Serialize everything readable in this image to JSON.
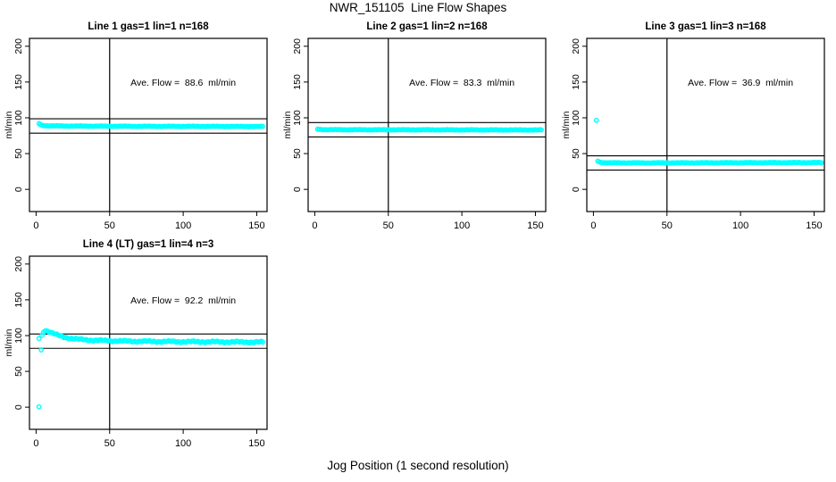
{
  "page": {
    "title": "NWR_151105  Line Flow Shapes",
    "xlabel": "Jog Position (1 second resolution)"
  },
  "chart_data": {
    "type": "scatter",
    "title": "NWR_151105  Line Flow Shapes",
    "xlabel": "Jog Position (1 second resolution)",
    "ylabel": "ml/min",
    "point_color": "#00FFFF",
    "axis_color": "#000000",
    "x_ticks": [
      0,
      50,
      100,
      150
    ],
    "y_ticks": [
      0,
      50,
      100,
      150,
      200
    ],
    "xlim": [
      -4.5,
      157
    ],
    "ylim": [
      -31,
      211
    ],
    "vline_x": 50,
    "grid": "off",
    "panels": [
      {
        "title": "Line 1 gas=1 lin=1 n=168",
        "annotation": "Ave. Flow =  88.6  ml/min",
        "ave_flow": 88.6,
        "n": 168,
        "hlines": [
          98.6,
          78.6
        ],
        "band": [
          [
            2,
            92
          ],
          [
            3,
            90.5
          ],
          [
            4,
            89.6
          ],
          [
            6,
            89
          ],
          [
            10,
            88.7
          ],
          [
            20,
            88.5
          ],
          [
            40,
            88.3
          ],
          [
            70,
            88.1
          ],
          [
            110,
            88
          ],
          [
            154,
            87.8
          ]
        ],
        "outliers": [],
        "noise": 0.4
      },
      {
        "title": "Line 2 gas=1 lin=2 n=168",
        "annotation": "Ave. Flow =  83.3  ml/min",
        "ave_flow": 83.3,
        "n": 168,
        "hlines": [
          93.3,
          73.3
        ],
        "band": [
          [
            2,
            84.2
          ],
          [
            4,
            83.7
          ],
          [
            8,
            83.4
          ],
          [
            30,
            83.3
          ],
          [
            80,
            83.2
          ],
          [
            154,
            83
          ]
        ],
        "outliers": [],
        "noise": 0.35
      },
      {
        "title": "Line 3 gas=1 lin=3 n=168",
        "annotation": "Ave. Flow =  36.9  ml/min",
        "ave_flow": 36.9,
        "n": 168,
        "hlines": [
          46.9,
          26.9
        ],
        "band": [
          [
            3,
            39.5
          ],
          [
            4,
            38.3
          ],
          [
            6,
            37.5
          ],
          [
            10,
            37.1
          ],
          [
            40,
            37
          ],
          [
            90,
            37.2
          ],
          [
            155,
            37.4
          ]
        ],
        "outliers": [
          [
            2,
            96.5
          ]
        ],
        "noise": 0.4
      },
      {
        "title": "Line 4 (LT) gas=1 lin=4 n=3",
        "annotation": "Ave. Flow =  92.2  ml/min",
        "ave_flow": 92.2,
        "n": 3,
        "hlines": [
          102.2,
          82.2
        ],
        "band": [
          [
            4,
            100
          ],
          [
            5,
            105
          ],
          [
            6,
            107.5
          ],
          [
            7,
            107
          ],
          [
            9,
            105.5
          ],
          [
            11,
            103.5
          ],
          [
            14,
            101
          ],
          [
            17,
            99
          ],
          [
            21,
            97
          ],
          [
            26,
            95.5
          ],
          [
            32,
            94.3
          ],
          [
            40,
            93.4
          ],
          [
            50,
            92.8
          ],
          [
            62,
            92.2
          ],
          [
            80,
            91.8
          ],
          [
            100,
            91.5
          ],
          [
            125,
            91.2
          ],
          [
            154,
            90.8
          ]
        ],
        "outliers": [
          [
            2,
            96
          ],
          [
            3.5,
            80
          ],
          [
            2,
            0.5
          ]
        ],
        "noise": 1.3
      }
    ]
  }
}
